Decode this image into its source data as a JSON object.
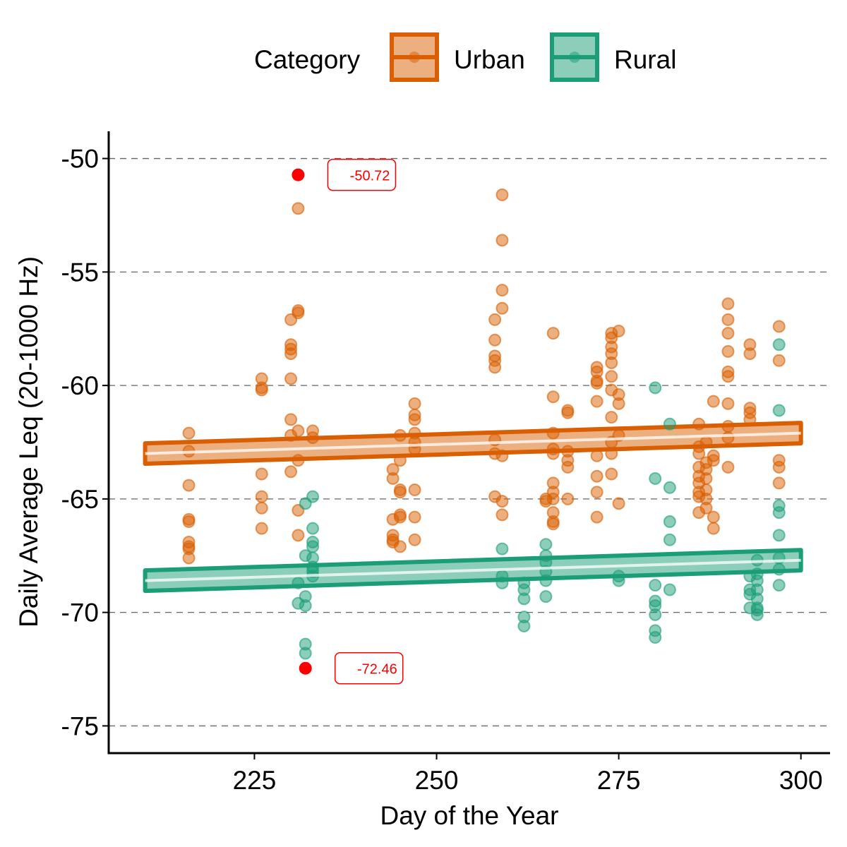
{
  "chart_data": {
    "type": "scatter",
    "title": "",
    "xlabel": "Day of the Year",
    "ylabel": "Daily Average Leq (20-1000 Hz)",
    "xlim": [
      205,
      304
    ],
    "ylim": [
      -76.2,
      -48.8
    ],
    "x_ticks": [
      225,
      250,
      275,
      300
    ],
    "x_tick_labels": [
      "225",
      "250",
      "275",
      "300"
    ],
    "y_ticks": [
      -50,
      -55,
      -60,
      -65,
      -70,
      -75
    ],
    "y_tick_labels": [
      "-50",
      "-55",
      "-60",
      "-65",
      "-70",
      "-75"
    ],
    "grid": "horizontal-dashed",
    "legend": {
      "title": "Category",
      "position": "top"
    },
    "series": [
      {
        "name": "Urban",
        "color": "#d95f02",
        "points": [
          [
            216,
            -62.1
          ],
          [
            216,
            -62.9
          ],
          [
            216,
            -64.4
          ],
          [
            216,
            -65.9
          ],
          [
            216,
            -66.0
          ],
          [
            216,
            -66.9
          ],
          [
            216,
            -67.1
          ],
          [
            216,
            -67.2
          ],
          [
            216,
            -67.6
          ],
          [
            226,
            -59.7
          ],
          [
            226,
            -60.1
          ],
          [
            226,
            -60.2
          ],
          [
            226,
            -63.9
          ],
          [
            226,
            -64.9
          ],
          [
            226,
            -65.4
          ],
          [
            226,
            -66.3
          ],
          [
            231,
            -52.2
          ],
          [
            231,
            -56.7
          ],
          [
            231,
            -56.8
          ],
          [
            230,
            -57.1
          ],
          [
            230,
            -58.2
          ],
          [
            230,
            -58.4
          ],
          [
            230,
            -58.6
          ],
          [
            230,
            -59.7
          ],
          [
            230,
            -61.5
          ],
          [
            230,
            -62.2
          ],
          [
            230,
            -63.8
          ],
          [
            231,
            -62.0
          ],
          [
            231,
            -63.3
          ],
          [
            231,
            -65.5
          ],
          [
            231,
            -66.6
          ],
          [
            233,
            -62.0
          ],
          [
            233,
            -62.3
          ],
          [
            244,
            -63.7
          ],
          [
            244,
            -64.1
          ],
          [
            244,
            -65.9
          ],
          [
            244,
            -66.6
          ],
          [
            244,
            -66.8
          ],
          [
            244,
            -66.9
          ],
          [
            245,
            -62.2
          ],
          [
            245,
            -63.3
          ],
          [
            245,
            -64.6
          ],
          [
            245,
            -64.7
          ],
          [
            245,
            -65.7
          ],
          [
            245,
            -65.8
          ],
          [
            245,
            -67.1
          ],
          [
            247,
            -60.8
          ],
          [
            247,
            -61.3
          ],
          [
            247,
            -61.5
          ],
          [
            247,
            -62.1
          ],
          [
            247,
            -62.5
          ],
          [
            247,
            -62.8
          ],
          [
            247,
            -64.6
          ],
          [
            247,
            -65.8
          ],
          [
            247,
            -66.8
          ],
          [
            258,
            -57.1
          ],
          [
            258,
            -58.0
          ],
          [
            258,
            -58.7
          ],
          [
            258,
            -58.9
          ],
          [
            258,
            -59.2
          ],
          [
            258,
            -62.4
          ],
          [
            258,
            -63.0
          ],
          [
            258,
            -64.9
          ],
          [
            259,
            -51.6
          ],
          [
            259,
            -53.6
          ],
          [
            259,
            -55.8
          ],
          [
            259,
            -56.6
          ],
          [
            259,
            -63.1
          ],
          [
            259,
            -65.1
          ],
          [
            259,
            -65.7
          ],
          [
            265,
            -65.0
          ],
          [
            265,
            -65.1
          ],
          [
            266,
            -57.7
          ],
          [
            266,
            -60.5
          ],
          [
            266,
            -62.1
          ],
          [
            266,
            -62.8
          ],
          [
            266,
            -63.0
          ],
          [
            266,
            -64.3
          ],
          [
            266,
            -64.7
          ],
          [
            266,
            -65.0
          ],
          [
            266,
            -65.6
          ],
          [
            266,
            -66.0
          ],
          [
            266,
            -66.1
          ],
          [
            268,
            -61.1
          ],
          [
            268,
            -61.2
          ],
          [
            268,
            -62.9
          ],
          [
            268,
            -63.3
          ],
          [
            268,
            -63.6
          ],
          [
            268,
            -65.0
          ],
          [
            272,
            -59.2
          ],
          [
            272,
            -59.4
          ],
          [
            272,
            -59.8
          ],
          [
            272,
            -59.9
          ],
          [
            272,
            -60.7
          ],
          [
            272,
            -63.1
          ],
          [
            272,
            -64.0
          ],
          [
            272,
            -64.7
          ],
          [
            272,
            -65.8
          ],
          [
            274,
            -57.7
          ],
          [
            274,
            -57.9
          ],
          [
            274,
            -58.3
          ],
          [
            274,
            -58.6
          ],
          [
            274,
            -59.0
          ],
          [
            274,
            -59.6
          ],
          [
            274,
            -60.2
          ],
          [
            274,
            -61.4
          ],
          [
            274,
            -62.5
          ],
          [
            274,
            -63.0
          ],
          [
            274,
            -63.9
          ],
          [
            275,
            -57.6
          ],
          [
            275,
            -60.4
          ],
          [
            275,
            -60.8
          ],
          [
            275,
            -62.2
          ],
          [
            275,
            -65.2
          ],
          [
            286,
            -61.7
          ],
          [
            286,
            -62.7
          ],
          [
            286,
            -63.0
          ],
          [
            286,
            -63.6
          ],
          [
            286,
            -64.0
          ],
          [
            286,
            -64.3
          ],
          [
            286,
            -64.7
          ],
          [
            286,
            -64.9
          ],
          [
            286,
            -65.6
          ],
          [
            287,
            -62.5
          ],
          [
            287,
            -63.4
          ],
          [
            287,
            -63.7
          ],
          [
            287,
            -64.1
          ],
          [
            287,
            -64.6
          ],
          [
            287,
            -65.0
          ],
          [
            287,
            -65.4
          ],
          [
            288,
            -60.7
          ],
          [
            288,
            -63.1
          ],
          [
            288,
            -63.3
          ],
          [
            288,
            -65.8
          ],
          [
            288,
            -66.3
          ],
          [
            290,
            -56.4
          ],
          [
            290,
            -57.1
          ],
          [
            290,
            -57.7
          ],
          [
            290,
            -58.5
          ],
          [
            290,
            -59.4
          ],
          [
            290,
            -59.6
          ],
          [
            290,
            -60.8
          ],
          [
            290,
            -61.8
          ],
          [
            290,
            -62.3
          ],
          [
            290,
            -63.6
          ],
          [
            293,
            -58.2
          ],
          [
            293,
            -58.6
          ],
          [
            293,
            -61.0
          ],
          [
            293,
            -61.2
          ],
          [
            293,
            -61.5
          ],
          [
            297,
            -57.4
          ],
          [
            297,
            -58.9
          ],
          [
            297,
            -63.3
          ],
          [
            297,
            -63.6
          ],
          [
            297,
            -64.3
          ]
        ],
        "trend": {
          "x_start": 210,
          "x_end": 300,
          "y_start": -63.0,
          "y_end": -62.1,
          "ci_halfwidth": 0.45
        }
      },
      {
        "name": "Rural",
        "color": "#1b9e77",
        "points": [
          [
            231,
            -68.7
          ],
          [
            231,
            -69.6
          ],
          [
            232,
            -65.2
          ],
          [
            232,
            -67.5
          ],
          [
            232,
            -69.3
          ],
          [
            232,
            -69.7
          ],
          [
            232,
            -71.4
          ],
          [
            232,
            -71.8
          ],
          [
            233,
            -64.9
          ],
          [
            233,
            -66.3
          ],
          [
            233,
            -66.9
          ],
          [
            233,
            -67.1
          ],
          [
            233,
            -67.6
          ],
          [
            233,
            -68.0
          ],
          [
            233,
            -68.2
          ],
          [
            233,
            -68.4
          ],
          [
            259,
            -67.2
          ],
          [
            259,
            -68.4
          ],
          [
            259,
            -68.7
          ],
          [
            262,
            -68.7
          ],
          [
            262,
            -69.0
          ],
          [
            262,
            -69.4
          ],
          [
            262,
            -70.2
          ],
          [
            262,
            -70.6
          ],
          [
            265,
            -67.0
          ],
          [
            265,
            -67.5
          ],
          [
            265,
            -67.8
          ],
          [
            265,
            -68.2
          ],
          [
            265,
            -68.6
          ],
          [
            265,
            -69.3
          ],
          [
            275,
            -68.4
          ],
          [
            275,
            -68.6
          ],
          [
            280,
            -60.1
          ],
          [
            280,
            -64.1
          ],
          [
            280,
            -68.8
          ],
          [
            280,
            -69.5
          ],
          [
            280,
            -69.7
          ],
          [
            280,
            -70.1
          ],
          [
            280,
            -70.8
          ],
          [
            280,
            -71.1
          ],
          [
            282,
            -61.7
          ],
          [
            282,
            -64.5
          ],
          [
            282,
            -66.0
          ],
          [
            282,
            -66.8
          ],
          [
            282,
            -69.0
          ],
          [
            293,
            -68.4
          ],
          [
            293,
            -69.0
          ],
          [
            293,
            -69.2
          ],
          [
            293,
            -69.8
          ],
          [
            294,
            -67.7
          ],
          [
            294,
            -68.3
          ],
          [
            294,
            -68.6
          ],
          [
            294,
            -69.0
          ],
          [
            294,
            -69.4
          ],
          [
            294,
            -69.8
          ],
          [
            294,
            -69.9
          ],
          [
            294,
            -70.1
          ],
          [
            297,
            -58.2
          ],
          [
            297,
            -61.1
          ],
          [
            297,
            -65.3
          ],
          [
            297,
            -65.6
          ],
          [
            297,
            -66.6
          ],
          [
            297,
            -67.6
          ],
          [
            297,
            -68.1
          ],
          [
            297,
            -68.8
          ]
        ],
        "trend": {
          "x_start": 210,
          "x_end": 300,
          "y_start": -68.6,
          "y_end": -67.7,
          "ci_halfwidth": 0.45
        }
      }
    ],
    "highlights": [
      {
        "x": 231,
        "y": -50.72,
        "label": "-50.72",
        "color": "#ff0000"
      },
      {
        "x": 232,
        "y": -72.46,
        "label": "-72.46",
        "color": "#ff0000"
      }
    ]
  }
}
